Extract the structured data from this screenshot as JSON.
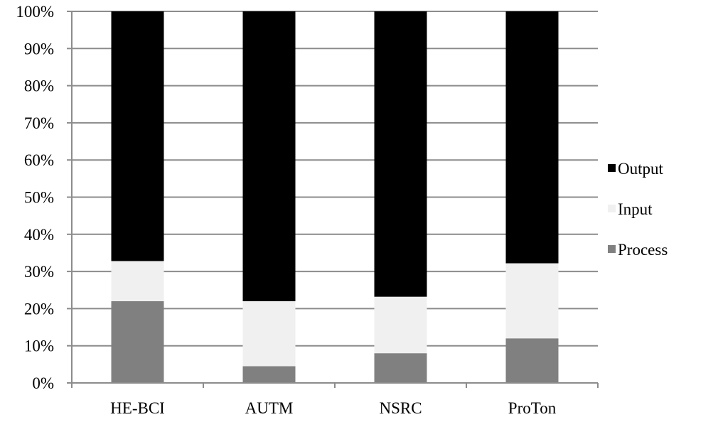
{
  "chart_data": {
    "type": "bar",
    "stacked": true,
    "percent_stacked": true,
    "title": "",
    "xlabel": "",
    "ylabel": "",
    "categories": [
      "HE-BCI",
      "AUTM",
      "NSRC",
      "ProTon"
    ],
    "ylim": [
      0,
      100
    ],
    "y_ticks": [
      "0%",
      "10%",
      "20%",
      "30%",
      "40%",
      "50%",
      "60%",
      "70%",
      "80%",
      "90%",
      "100%"
    ],
    "grid": true,
    "legend_position": "right",
    "series": [
      {
        "name": "Process",
        "values": [
          22,
          4.5,
          8,
          12
        ],
        "color": "#808080"
      },
      {
        "name": "Input",
        "values": [
          10.8,
          17.5,
          15.2,
          20.2
        ],
        "color": "#f0f0f0"
      },
      {
        "name": "Output",
        "values": [
          67.2,
          78,
          76.8,
          67.8
        ],
        "color": "#000000"
      }
    ],
    "legend_order": [
      "Output",
      "Input",
      "Process"
    ]
  }
}
